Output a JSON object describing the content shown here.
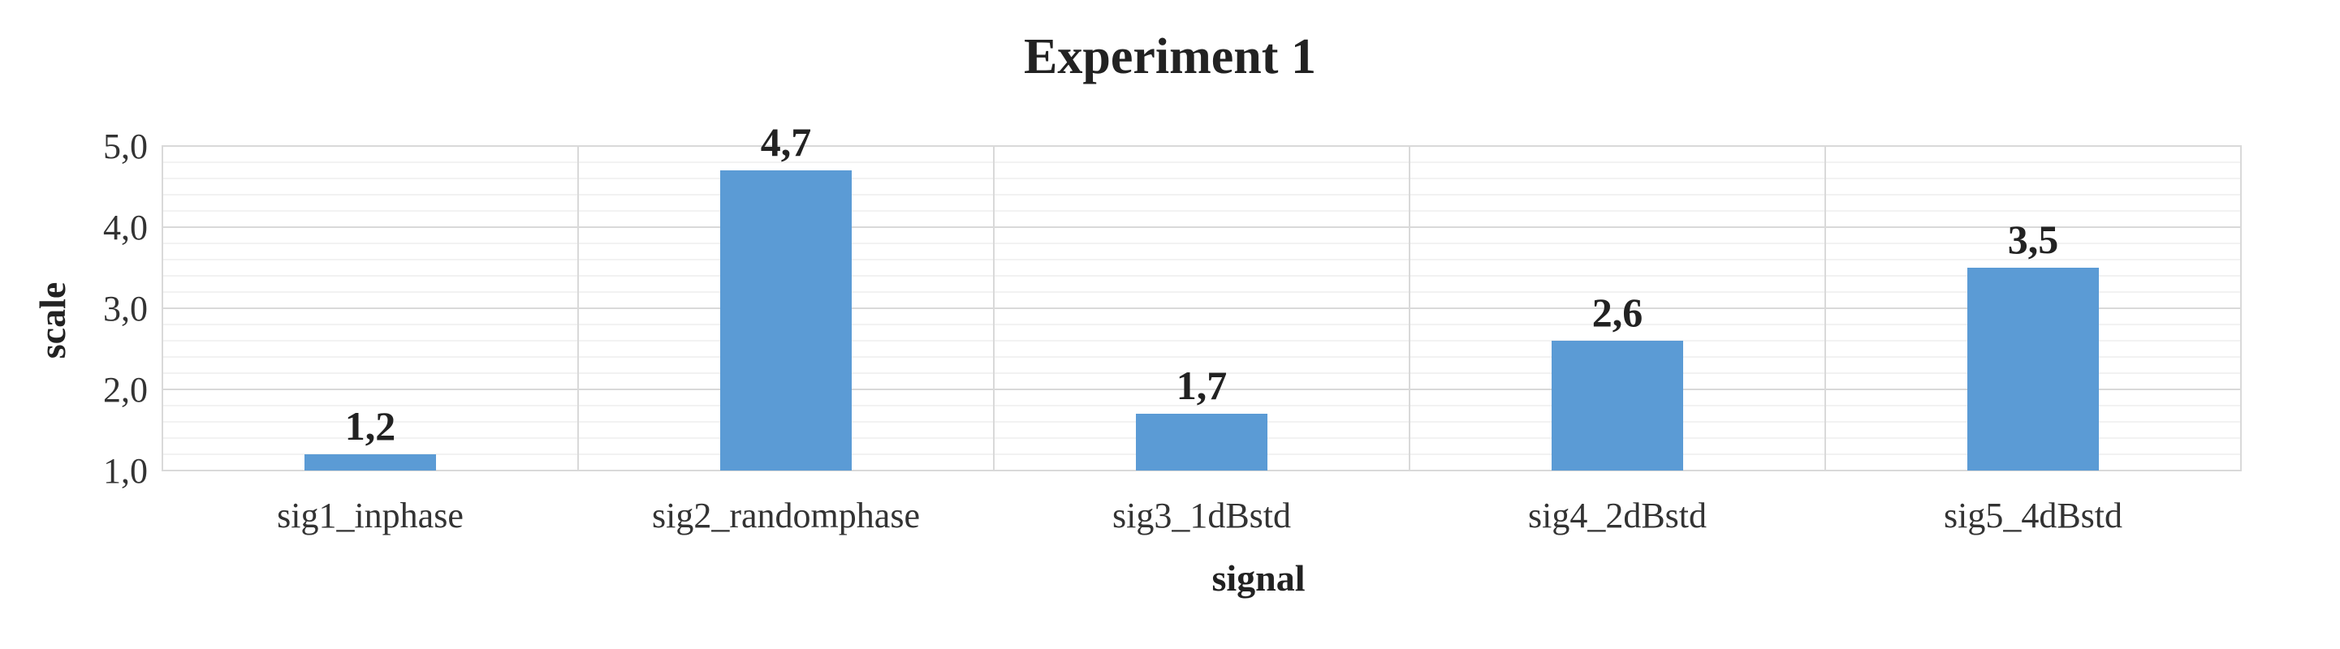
{
  "chart_data": {
    "type": "bar",
    "title": "Experiment 1",
    "xlabel": "signal",
    "ylabel": "scale",
    "categories": [
      "sig1_inphase",
      "sig2_randomphase",
      "sig3_1dBstd",
      "sig4_2dBstd",
      "sig5_4dBstd"
    ],
    "values": [
      1.2,
      4.7,
      1.7,
      2.6,
      3.5
    ],
    "value_labels": [
      "1,2",
      "4,7",
      "1,7",
      "2,6",
      "3,5"
    ],
    "ylim": [
      1.0,
      5.0
    ],
    "yticks": [
      1.0,
      2.0,
      3.0,
      4.0,
      5.0
    ],
    "ytick_labels": [
      "1,0",
      "2,0",
      "3,0",
      "4,0",
      "5,0"
    ],
    "minor_grid_step": 0.2,
    "grid": true,
    "legend": "none",
    "bar_color": "#5b9bd5"
  }
}
